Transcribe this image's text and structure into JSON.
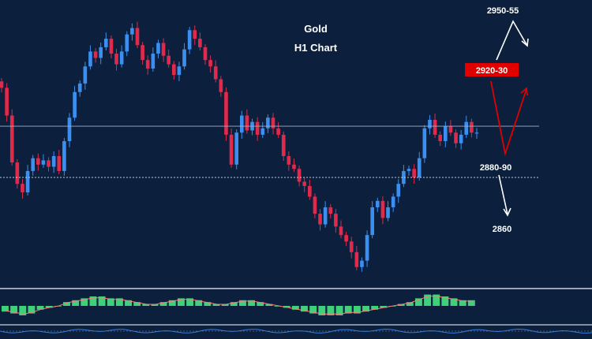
{
  "chart_data": {
    "type": "candlestick",
    "title": "Gold",
    "subtitle": "H1 Chart",
    "price_range": [
      2845,
      2968
    ],
    "levels": [
      {
        "name": "resistance",
        "value": 2917,
        "style": "solid"
      },
      {
        "name": "support",
        "value": 2893,
        "style": "dotted"
      }
    ],
    "annotations": {
      "upper_target": "2950-55",
      "resistance_zone": "2920-30",
      "support_zone": "2880-90",
      "lower_target": "2860"
    },
    "closes": [
      2935,
      2922,
      2900,
      2890,
      2886,
      2896,
      2902,
      2899,
      2901,
      2898,
      2903,
      2896,
      2910,
      2921,
      2933,
      2937,
      2945,
      2952,
      2949,
      2954,
      2958,
      2951,
      2946,
      2952,
      2960,
      2963,
      2955,
      2948,
      2944,
      2951,
      2956,
      2950,
      2946,
      2941,
      2945,
      2953,
      2962,
      2958,
      2954,
      2948,
      2945,
      2939,
      2933,
      2913,
      2899,
      2914,
      2922,
      2915,
      2919,
      2913,
      2916,
      2921,
      2916,
      2913,
      2903,
      2899,
      2897,
      2891,
      2889,
      2884,
      2876,
      2871,
      2879,
      2876,
      2870,
      2866,
      2863,
      2858,
      2851,
      2854,
      2866,
      2879,
      2882,
      2874,
      2879,
      2884,
      2890,
      2896,
      2897,
      2893,
      2902,
      2916,
      2920,
      2913,
      2910,
      2917,
      2914,
      2909,
      2913,
      2919,
      2914,
      2914
    ],
    "indicator": {
      "name": "MACD",
      "histogram": [
        -3,
        -4,
        -5,
        -4,
        -2,
        -1,
        0,
        2,
        3,
        4,
        5,
        5,
        4,
        4,
        3,
        2,
        1,
        1,
        2,
        3,
        4,
        4,
        3,
        2,
        1,
        1,
        2,
        3,
        3,
        2,
        1,
        0,
        -1,
        -2,
        -3,
        -4,
        -5,
        -5,
        -5,
        -4,
        -4,
        -3,
        -2,
        -1,
        0,
        1,
        2,
        4,
        6,
        6,
        5,
        4,
        3,
        3
      ]
    }
  },
  "colors": {
    "background": "#0c1f3c",
    "bull_candle": "#3a8ff0",
    "bear_candle": "#e02a4b",
    "label_box": "#e00000",
    "macd_hist": "#3ed17a"
  }
}
